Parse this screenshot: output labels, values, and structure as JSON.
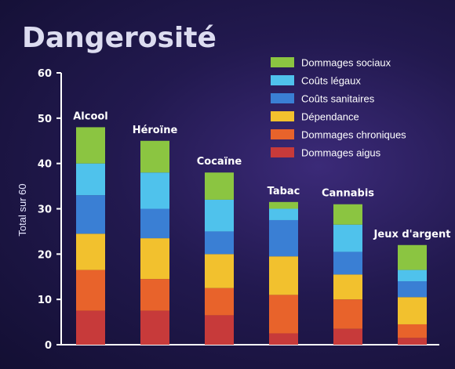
{
  "chart_data": {
    "type": "bar",
    "stacked": true,
    "title": "Dangerosité",
    "ylabel": "Total sur 60",
    "ylim": [
      0,
      60
    ],
    "yticks": [
      0,
      10,
      20,
      30,
      40,
      50,
      60
    ],
    "categories": [
      "Alcool",
      "Héroïne",
      "Cocaïne",
      "Tabac",
      "Cannabis",
      "Jeux d'argent"
    ],
    "series": [
      {
        "name": "Dommages aigus",
        "color": "#c73a3a",
        "values": [
          7.5,
          7.5,
          6.5,
          2.5,
          3.5,
          1.5
        ]
      },
      {
        "name": "Dommages chroniques",
        "color": "#e8632b",
        "values": [
          9,
          7,
          6,
          8.5,
          6.5,
          3
        ]
      },
      {
        "name": "Dépendance",
        "color": "#f2c12e",
        "values": [
          8,
          9,
          7.5,
          8.5,
          5.5,
          6
        ]
      },
      {
        "name": "Coûts sanitaires",
        "color": "#3a7fd4",
        "values": [
          8.5,
          6.5,
          5,
          8,
          5,
          3.5
        ]
      },
      {
        "name": "Coûts légaux",
        "color": "#4fc2ec",
        "values": [
          7,
          8,
          7,
          2.5,
          6,
          2.5
        ]
      },
      {
        "name": "Dommages sociaux",
        "color": "#8bc541",
        "values": [
          8,
          7,
          6,
          1.5,
          4.5,
          5.5
        ]
      }
    ],
    "legend_order": [
      "Dommages sociaux",
      "Coûts légaux",
      "Coûts sanitaires",
      "Dépendance",
      "Dommages chroniques",
      "Dommages aigus"
    ],
    "legend_position": "top-right"
  }
}
